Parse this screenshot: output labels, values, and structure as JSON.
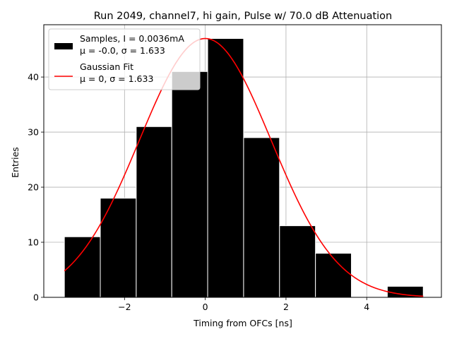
{
  "chart_data": {
    "type": "bar",
    "title": "Run 2049, channel7, hi gain, Pulse w/ 70.0 dB Attenuation",
    "xlabel": "Timing from OFCs [ns]",
    "ylabel": "Entries",
    "xlim": [
      -4.0,
      5.85
    ],
    "ylim": [
      0,
      49.5
    ],
    "grid": true,
    "legend_position": "top-left",
    "x_ticks": [
      -2,
      0,
      2,
      4
    ],
    "x_tick_labels": [
      "−2",
      "0",
      "2",
      "4"
    ],
    "y_ticks": [
      0,
      10,
      20,
      30,
      40
    ],
    "y_tick_labels": [
      "0",
      "10",
      "20",
      "30",
      "40"
    ],
    "histogram": {
      "name": "Samples, I = 0.0036mA",
      "stats_label": "μ = -0.0, σ = 1.633",
      "color": "#000000",
      "edge_color": "#ffffff",
      "bins": [
        {
          "x0": -3.49,
          "x1": -2.6,
          "count": 11
        },
        {
          "x0": -2.6,
          "x1": -1.71,
          "count": 18
        },
        {
          "x0": -1.71,
          "x1": -0.83,
          "count": 31
        },
        {
          "x0": -0.83,
          "x1": 0.06,
          "count": 41
        },
        {
          "x0": 0.06,
          "x1": 0.95,
          "count": 47
        },
        {
          "x0": 0.95,
          "x1": 1.84,
          "count": 29
        },
        {
          "x0": 1.84,
          "x1": 2.73,
          "count": 13
        },
        {
          "x0": 2.73,
          "x1": 3.62,
          "count": 8
        },
        {
          "x0": 3.62,
          "x1": 4.51,
          "count": 0
        },
        {
          "x0": 4.51,
          "x1": 5.4,
          "count": 2
        }
      ]
    },
    "fit": {
      "name": "Gaussian Fit",
      "stats_label": "μ = 0, σ = 1.633",
      "color": "#ff0000",
      "mu": 0,
      "sigma": 1.633,
      "amplitude": 47,
      "x_range": [
        -3.49,
        5.4
      ]
    }
  }
}
